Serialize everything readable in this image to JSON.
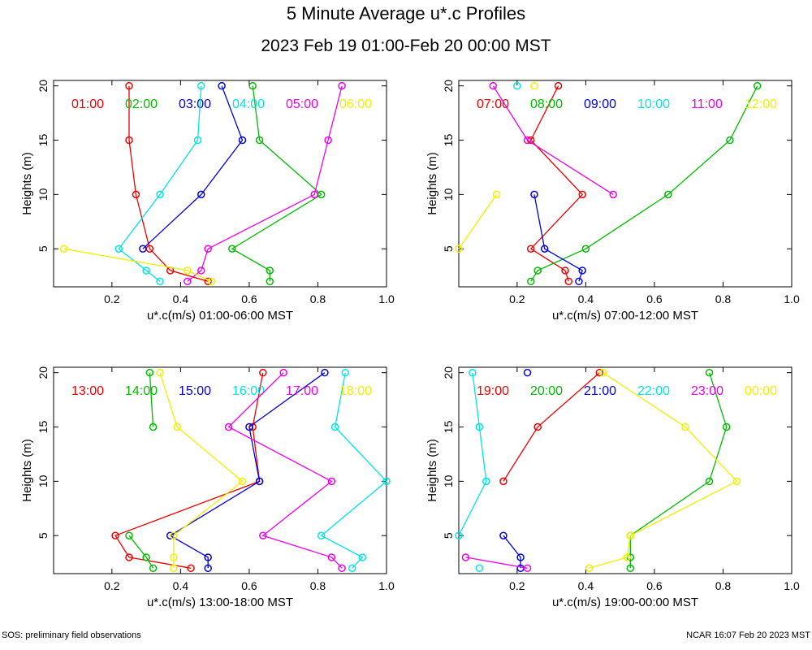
{
  "title": "5 Minute Average u*.c Profiles",
  "subtitle": "2023 Feb 19 01:00-Feb 20 00:00 MST",
  "footer_left": "SOS: preliminary field observations",
  "footer_right": "NCAR 16:07 Feb 20 2023 MST",
  "colors": {
    "red": "#ee0000",
    "green": "#00bb00",
    "blue": "#0000dd",
    "cyan": "#00e5e5",
    "magenta": "#ee00ee",
    "yellow": "#f0f000"
  },
  "chart_data": [
    {
      "type": "line",
      "xlabel": "u*.c(m/s) 01:00-06:00 MST",
      "ylabel": "Heights (m)",
      "xlim": [
        0.03,
        1.0
      ],
      "ylim": [
        1.5,
        20.5
      ],
      "xticks": [
        "0.2",
        "0.4",
        "0.6",
        "0.8",
        "1.0"
      ],
      "yticks": [
        "5",
        "10",
        "15",
        "20"
      ],
      "legend_position": "top",
      "series": [
        {
          "name": "01:00",
          "color": "#ee0000",
          "x": [
            0.48,
            0.37,
            0.31,
            0.27,
            0.25,
            0.25
          ],
          "y": [
            2,
            3,
            5,
            10,
            15,
            20
          ]
        },
        {
          "name": "02:00",
          "color": "#00bb00",
          "x": [
            0.66,
            0.66,
            0.55,
            0.81,
            0.63,
            0.61
          ],
          "y": [
            2,
            3,
            5,
            10,
            15,
            20
          ]
        },
        {
          "name": "03:00",
          "color": "#0000dd",
          "x": [
            null,
            null,
            0.29,
            0.46,
            0.58,
            0.52
          ],
          "y": [
            2,
            3,
            5,
            10,
            15,
            20
          ]
        },
        {
          "name": "04:00",
          "color": "#00e5e5",
          "x": [
            0.34,
            0.3,
            0.22,
            0.34,
            0.45,
            0.46
          ],
          "y": [
            2,
            3,
            5,
            10,
            15,
            20
          ]
        },
        {
          "name": "05:00",
          "color": "#ee00ee",
          "x": [
            0.42,
            0.46,
            0.48,
            0.79,
            0.83,
            0.87
          ],
          "y": [
            2,
            3,
            5,
            10,
            15,
            20
          ]
        },
        {
          "name": "06:00",
          "color": "#f0f000",
          "x": [
            0.49,
            0.42,
            0.06,
            null,
            null,
            null
          ],
          "y": [
            2,
            3,
            5,
            10,
            15,
            20
          ]
        }
      ]
    },
    {
      "type": "line",
      "xlabel": "u*.c(m/s) 07:00-12:00 MST",
      "ylabel": "Heights (m)",
      "xlim": [
        0.03,
        1.0
      ],
      "ylim": [
        1.5,
        20.5
      ],
      "xticks": [
        "0.2",
        "0.4",
        "0.6",
        "0.8",
        "1.0"
      ],
      "yticks": [
        "5",
        "10",
        "15",
        "20"
      ],
      "legend_position": "top",
      "series": [
        {
          "name": "07:00",
          "color": "#ee0000",
          "x": [
            0.35,
            0.34,
            0.24,
            0.39,
            0.24,
            0.32
          ],
          "y": [
            2,
            3,
            5,
            10,
            15,
            20
          ]
        },
        {
          "name": "08:00",
          "color": "#00bb00",
          "x": [
            0.24,
            0.26,
            0.4,
            0.64,
            0.82,
            0.9
          ],
          "y": [
            2,
            3,
            5,
            10,
            15,
            20
          ]
        },
        {
          "name": "09:00",
          "color": "#0000dd",
          "x": [
            0.38,
            0.39,
            0.28,
            0.25,
            null,
            null
          ],
          "y": [
            2,
            3,
            5,
            10,
            15,
            20
          ]
        },
        {
          "name": "10:00",
          "color": "#00e5e5",
          "x": [
            null,
            null,
            null,
            null,
            null,
            0.2
          ],
          "y": [
            2,
            3,
            5,
            10,
            15,
            20
          ]
        },
        {
          "name": "11:00",
          "color": "#ee00ee",
          "x": [
            null,
            null,
            null,
            0.48,
            0.23,
            0.13
          ],
          "y": [
            2,
            3,
            5,
            10,
            15,
            20
          ]
        },
        {
          "name": "12:00",
          "color": "#f0f000",
          "x": [
            null,
            null,
            0.03,
            0.14,
            null,
            0.25
          ],
          "y": [
            2,
            3,
            5,
            10,
            15,
            20
          ]
        }
      ]
    },
    {
      "type": "line",
      "xlabel": "u*.c(m/s) 13:00-18:00 MST",
      "ylabel": "Heights (m)",
      "xlim": [
        0.03,
        1.0
      ],
      "ylim": [
        1.5,
        20.5
      ],
      "xticks": [
        "0.2",
        "0.4",
        "0.6",
        "0.8",
        "1.0"
      ],
      "yticks": [
        "5",
        "10",
        "15",
        "20"
      ],
      "legend_position": "top",
      "series": [
        {
          "name": "13:00",
          "color": "#ee0000",
          "x": [
            0.43,
            0.25,
            0.21,
            0.63,
            0.61,
            0.64
          ],
          "y": [
            2,
            3,
            5,
            10,
            15,
            20
          ]
        },
        {
          "name": "14:00",
          "color": "#00bb00",
          "x": [
            0.32,
            0.3,
            0.25,
            null,
            0.32,
            0.31
          ],
          "y": [
            2,
            3,
            5,
            10,
            15,
            20
          ]
        },
        {
          "name": "15:00",
          "color": "#0000dd",
          "x": [
            0.48,
            0.48,
            0.37,
            0.63,
            0.6,
            0.82
          ],
          "y": [
            2,
            3,
            5,
            10,
            15,
            20
          ]
        },
        {
          "name": "16:00",
          "color": "#00e5e5",
          "x": [
            0.9,
            0.93,
            0.81,
            1.0,
            0.85,
            0.88
          ],
          "y": [
            2,
            3,
            5,
            10,
            15,
            20
          ]
        },
        {
          "name": "17:00",
          "color": "#ee00ee",
          "x": [
            0.87,
            0.84,
            0.64,
            0.84,
            0.54,
            0.7
          ],
          "y": [
            2,
            3,
            5,
            10,
            15,
            20
          ]
        },
        {
          "name": "18:00",
          "color": "#f0f000",
          "x": [
            0.38,
            0.38,
            0.38,
            0.58,
            0.39,
            0.34
          ],
          "y": [
            2,
            3,
            5,
            10,
            15,
            20
          ]
        }
      ]
    },
    {
      "type": "line",
      "xlabel": "u*.c(m/s) 19:00-00:00 MST",
      "ylabel": "Heights (m)",
      "xlim": [
        0.03,
        1.0
      ],
      "ylim": [
        1.5,
        20.5
      ],
      "xticks": [
        "0.2",
        "0.4",
        "0.6",
        "0.8",
        "1.0"
      ],
      "yticks": [
        "5",
        "10",
        "15",
        "20"
      ],
      "legend_position": "top",
      "series": [
        {
          "name": "19:00",
          "color": "#ee0000",
          "x": [
            null,
            null,
            null,
            0.16,
            0.26,
            0.44
          ],
          "y": [
            2,
            3,
            5,
            10,
            15,
            20
          ]
        },
        {
          "name": "20:00",
          "color": "#00bb00",
          "x": [
            0.53,
            0.53,
            0.53,
            0.76,
            0.81,
            0.76
          ],
          "y": [
            2,
            3,
            5,
            10,
            15,
            20
          ]
        },
        {
          "name": "21:00",
          "color": "#0000dd",
          "x": [
            0.21,
            0.21,
            0.16,
            null,
            null,
            0.23
          ],
          "y": [
            2,
            3,
            5,
            10,
            15,
            20
          ]
        },
        {
          "name": "22:00",
          "color": "#00e5e5",
          "x": [
            0.09,
            null,
            0.03,
            0.11,
            0.09,
            0.07
          ],
          "y": [
            2,
            3,
            5,
            10,
            15,
            20
          ]
        },
        {
          "name": "23:00",
          "color": "#ee00ee",
          "x": [
            0.23,
            0.05,
            null,
            null,
            null,
            null
          ],
          "y": [
            2,
            3,
            5,
            10,
            15,
            20
          ]
        },
        {
          "name": "00:00",
          "color": "#f0f000",
          "x": [
            0.41,
            0.52,
            0.53,
            0.84,
            0.69,
            0.45
          ],
          "y": [
            2,
            3,
            5,
            10,
            15,
            20
          ]
        }
      ]
    }
  ]
}
